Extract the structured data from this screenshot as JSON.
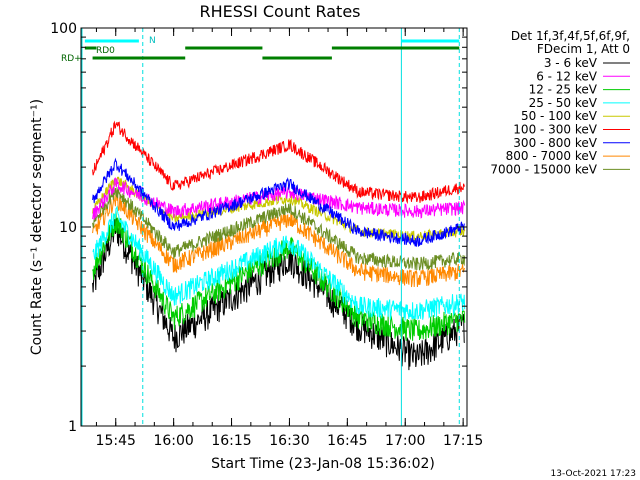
{
  "chart_data": {
    "type": "line",
    "title": "RHESSI Count Rates",
    "xlabel": "Start Time (23-Jan-08 15:36:02)",
    "ylabel": "Count Rate (s⁻¹ detector segment⁻¹)",
    "y_scale": "log",
    "ylim": [
      1,
      100
    ],
    "y_ticks": [
      1,
      10,
      100
    ],
    "y_tick_labels": [
      "1",
      "10",
      "100"
    ],
    "x_range_minutes": [
      "15:36",
      "17:16"
    ],
    "x_ticks": [
      "15:45",
      "16:00",
      "16:15",
      "16:30",
      "16:45",
      "17:00",
      "17:15"
    ],
    "grid": false,
    "legend_position": "right",
    "legend_header": [
      "Det 1f,3f,4f,5f,6f,9f,",
      "FDecim 1, Att 0"
    ],
    "series": [
      {
        "name": "3 - 6 keV",
        "color": "#000000",
        "values": [
          [
            15.6,
            3.5
          ],
          [
            15.75,
            10.0
          ],
          [
            16.0,
            2.8
          ],
          [
            16.5,
            7.0
          ],
          [
            16.8,
            3.2
          ],
          [
            17.05,
            2.2
          ],
          [
            17.25,
            3.2
          ]
        ]
      },
      {
        "name": "6 - 12 keV",
        "color": "#ff00ff",
        "values": [
          [
            15.6,
            9.5
          ],
          [
            15.75,
            16.5
          ],
          [
            16.0,
            12.0
          ],
          [
            16.5,
            15.0
          ],
          [
            16.8,
            12.5
          ],
          [
            17.05,
            12.0
          ],
          [
            17.25,
            12.5
          ]
        ]
      },
      {
        "name": "12 - 25 keV",
        "color": "#00cc00",
        "values": [
          [
            15.6,
            4.5
          ],
          [
            15.75,
            11.0
          ],
          [
            16.0,
            3.5
          ],
          [
            16.5,
            8.0
          ],
          [
            16.8,
            3.5
          ],
          [
            17.05,
            3.0
          ],
          [
            17.25,
            3.5
          ]
        ]
      },
      {
        "name": "25 - 50 keV",
        "color": "#00ffff",
        "values": [
          [
            15.6,
            5.5
          ],
          [
            15.75,
            11.5
          ],
          [
            16.0,
            4.5
          ],
          [
            16.5,
            8.5
          ],
          [
            16.8,
            4.0
          ],
          [
            17.05,
            3.8
          ],
          [
            17.25,
            4.2
          ]
        ]
      },
      {
        "name": "50 - 100 keV",
        "color": "#c8c800",
        "values": [
          [
            15.6,
            10.0
          ],
          [
            15.75,
            17.5
          ],
          [
            16.0,
            11.0
          ],
          [
            16.5,
            14.0
          ],
          [
            16.8,
            9.5
          ],
          [
            17.05,
            9.0
          ],
          [
            17.25,
            9.5
          ]
        ]
      },
      {
        "name": "100 - 300 keV",
        "color": "#ff0000",
        "values": [
          [
            15.6,
            14.0
          ],
          [
            15.75,
            33.0
          ],
          [
            16.0,
            16.0
          ],
          [
            16.5,
            26.0
          ],
          [
            16.8,
            15.0
          ],
          [
            17.05,
            14.0
          ],
          [
            17.25,
            16.0
          ]
        ]
      },
      {
        "name": "300 - 800 keV",
        "color": "#0000ff",
        "values": [
          [
            15.6,
            11.0
          ],
          [
            15.75,
            21.0
          ],
          [
            16.0,
            10.0
          ],
          [
            16.5,
            16.5
          ],
          [
            16.8,
            9.5
          ],
          [
            17.05,
            8.5
          ],
          [
            17.25,
            10.0
          ]
        ]
      },
      {
        "name": "800 - 7000 keV",
        "color": "#ff8800",
        "values": [
          [
            15.6,
            7.5
          ],
          [
            15.75,
            14.0
          ],
          [
            16.0,
            6.5
          ],
          [
            16.5,
            11.0
          ],
          [
            16.8,
            6.0
          ],
          [
            17.05,
            5.5
          ],
          [
            17.25,
            6.0
          ]
        ]
      },
      {
        "name": "7000 - 15000 keV",
        "color": "#6b8e23",
        "values": [
          [
            15.6,
            8.5
          ],
          [
            15.75,
            15.5
          ],
          [
            16.0,
            7.5
          ],
          [
            16.5,
            12.5
          ],
          [
            16.8,
            7.0
          ],
          [
            17.05,
            6.5
          ],
          [
            17.25,
            7.0
          ]
        ]
      }
    ],
    "annotations": {
      "n_label": "N",
      "rd0_label": "RD0",
      "rd_plus_label": "RD+"
    }
  },
  "footer": {
    "timestamp": "13-Oct-2021 17:23"
  }
}
